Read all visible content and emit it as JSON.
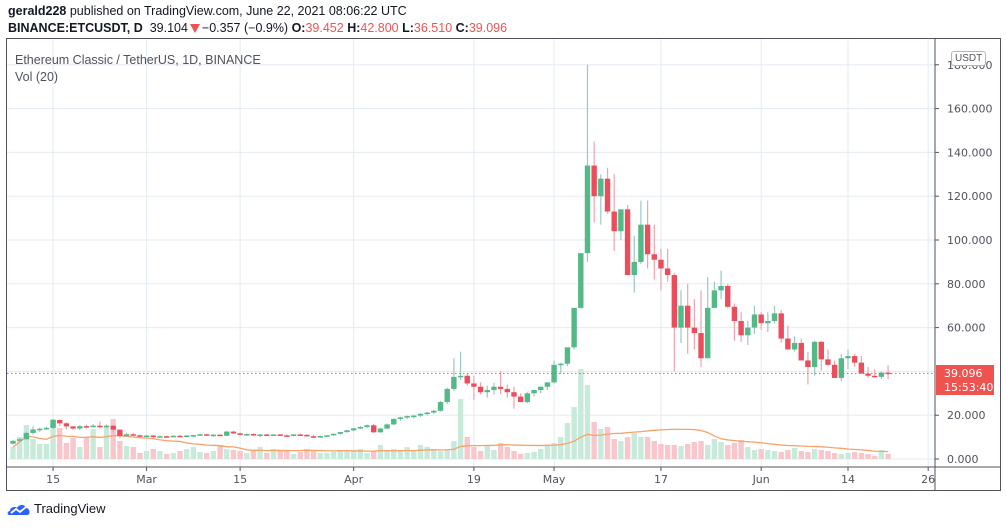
{
  "header": {
    "publisher": "gerald228",
    "published_text": "published on TradingView.com, June 22, 2021 08:06:22 UTC",
    "symbol": "BINANCE:ETCUSDT, D",
    "last": "39.104",
    "change": "−0.357 (−0.9%)",
    "o_label": "O:",
    "o": "39.452",
    "h_label": "H:",
    "h": "42.800",
    "l_label": "L:",
    "l": "36.510",
    "c_label": "C:",
    "c": "39.096"
  },
  "legend": {
    "title": "Ethereum Classic / TetherUS, 1D, BINANCE",
    "volume": "Vol (20)"
  },
  "axis": {
    "currency_badge": "USDT",
    "last_price_label": "39.096",
    "countdown": "15:53:40"
  },
  "footer": {
    "brand": "TradingView"
  },
  "colors": {
    "up": "#53b987",
    "down": "#eb4d5c",
    "up_volume": "#c8eadb",
    "down_volume": "#f9c6cc",
    "ma_line": "#f6a36a",
    "grid": "#e3ebf2",
    "price_line": "#ef5350"
  },
  "chart_data": {
    "type": "candlestick",
    "title": "Ethereum Classic / TetherUS, 1D, BINANCE",
    "xlabel": "",
    "ylabel": "USDT",
    "ylim": [
      0,
      180
    ],
    "grid": true,
    "y_ticks": [
      0,
      20,
      40,
      60,
      80,
      100,
      120,
      140,
      160,
      180
    ],
    "y_tick_labels": [
      "0.000",
      "20.000",
      "",
      "60.000",
      "80.000",
      "100.000",
      "120.000",
      "140.000",
      "160.000",
      "180.000"
    ],
    "x_ticks": [
      {
        "label": "15",
        "day": 6
      },
      {
        "label": "Mar",
        "day": 20
      },
      {
        "label": "15",
        "day": 34
      },
      {
        "label": "Apr",
        "day": 51
      },
      {
        "label": "19",
        "day": 69
      },
      {
        "label": "May",
        "day": 81
      },
      {
        "label": "17",
        "day": 97
      },
      {
        "label": "Jun",
        "day": 112
      },
      {
        "label": "14",
        "day": 125
      },
      {
        "label": "26",
        "day": 137
      }
    ],
    "start_date": "2021-02-09",
    "last_close": 39.096,
    "volume_ma_period": 20,
    "candles": [
      [
        7.0,
        8.5,
        6.7,
        8.3
      ],
      [
        8.3,
        9.6,
        7.9,
        9.0
      ],
      [
        9.0,
        12.5,
        8.8,
        11.9
      ],
      [
        11.9,
        15.0,
        11.2,
        13.5
      ],
      [
        13.5,
        14.3,
        12.4,
        13.8
      ],
      [
        13.8,
        14.8,
        13.2,
        14.2
      ],
      [
        14.2,
        18.3,
        13.8,
        17.8
      ],
      [
        17.8,
        18.0,
        15.0,
        16.3
      ],
      [
        16.3,
        16.7,
        13.5,
        14.9
      ],
      [
        14.9,
        15.0,
        13.2,
        13.9
      ],
      [
        13.9,
        15.5,
        13.2,
        15.0
      ],
      [
        15.0,
        15.6,
        14.0,
        14.9
      ],
      [
        14.9,
        16.0,
        14.3,
        15.2
      ],
      [
        15.2,
        17.2,
        14.0,
        14.8
      ],
      [
        14.8,
        15.8,
        14.0,
        15.2
      ],
      [
        15.2,
        15.4,
        11.7,
        13.4
      ],
      [
        13.4,
        13.6,
        9.6,
        10.5
      ],
      [
        10.5,
        12.0,
        10.3,
        11.3
      ],
      [
        11.3,
        12.0,
        10.4,
        10.8
      ],
      [
        10.8,
        11.2,
        9.8,
        10.5
      ],
      [
        10.5,
        10.9,
        10.0,
        10.7
      ],
      [
        10.7,
        11.0,
        9.6,
        10.0
      ],
      [
        10.0,
        10.8,
        9.8,
        10.4
      ],
      [
        10.4,
        10.6,
        9.9,
        10.1
      ],
      [
        10.1,
        10.8,
        10.0,
        10.6
      ],
      [
        10.6,
        11.0,
        10.1,
        10.4
      ],
      [
        10.4,
        10.9,
        9.9,
        10.7
      ],
      [
        10.7,
        11.0,
        10.2,
        10.9
      ],
      [
        10.9,
        11.6,
        10.6,
        11.3
      ],
      [
        11.3,
        11.5,
        10.6,
        10.8
      ],
      [
        10.8,
        11.4,
        10.2,
        11.1
      ],
      [
        11.1,
        11.3,
        10.4,
        10.6
      ],
      [
        10.6,
        12.8,
        10.4,
        12.5
      ],
      [
        12.5,
        12.9,
        11.4,
        11.7
      ],
      [
        11.7,
        12.1,
        10.8,
        11.2
      ],
      [
        11.2,
        11.6,
        10.5,
        11.4
      ],
      [
        11.4,
        11.7,
        10.6,
        10.9
      ],
      [
        10.9,
        11.4,
        9.9,
        11.2
      ],
      [
        11.2,
        11.5,
        10.6,
        11.0
      ],
      [
        11.0,
        11.4,
        10.6,
        11.2
      ],
      [
        11.2,
        11.5,
        10.5,
        10.8
      ],
      [
        10.8,
        11.2,
        10.2,
        10.7
      ],
      [
        10.7,
        11.4,
        10.3,
        11.2
      ],
      [
        11.2,
        11.6,
        10.7,
        11.0
      ],
      [
        11.0,
        11.4,
        10.5,
        10.4
      ],
      [
        10.4,
        10.9,
        9.6,
        9.9
      ],
      [
        9.9,
        10.7,
        9.6,
        10.5
      ],
      [
        10.5,
        11.0,
        10.2,
        10.8
      ],
      [
        10.8,
        11.7,
        10.6,
        11.5
      ],
      [
        11.5,
        12.4,
        11.2,
        12.3
      ],
      [
        12.3,
        13.4,
        12.0,
        13.1
      ],
      [
        13.1,
        14.3,
        12.8,
        14.0
      ],
      [
        14.0,
        15.0,
        13.6,
        14.6
      ],
      [
        14.6,
        15.8,
        14.2,
        15.4
      ],
      [
        15.4,
        16.1,
        11.8,
        12.2
      ],
      [
        12.2,
        14.3,
        11.9,
        13.9
      ],
      [
        13.9,
        16.2,
        13.6,
        15.8
      ],
      [
        15.8,
        18.6,
        15.4,
        18.3
      ],
      [
        18.3,
        19.3,
        17.4,
        19.0
      ],
      [
        19.0,
        19.8,
        18.2,
        19.6
      ],
      [
        19.6,
        20.3,
        18.5,
        19.8
      ],
      [
        19.8,
        21.0,
        19.2,
        20.6
      ],
      [
        20.6,
        21.4,
        19.9,
        21.2
      ],
      [
        21.2,
        22.5,
        20.6,
        22.0
      ],
      [
        22.0,
        26.5,
        21.7,
        26.0
      ],
      [
        26.0,
        32.5,
        25.0,
        32.0
      ],
      [
        32.0,
        46.0,
        31.0,
        37.5
      ],
      [
        37.5,
        49.0,
        36.0,
        38.0
      ],
      [
        38.0,
        39.0,
        33.5,
        34.5
      ],
      [
        34.5,
        38.0,
        27.0,
        33.0
      ],
      [
        33.0,
        35.0,
        29.5,
        30.5
      ],
      [
        30.5,
        33.5,
        28.0,
        31.5
      ],
      [
        31.5,
        34.8,
        29.5,
        33.0
      ],
      [
        33.0,
        40.0,
        29.5,
        32.0
      ],
      [
        32.0,
        34.0,
        28.0,
        30.5
      ],
      [
        30.5,
        33.0,
        23.0,
        28.5
      ],
      [
        28.5,
        30.0,
        26.0,
        26.0
      ],
      [
        26.0,
        30.5,
        25.5,
        30.0
      ],
      [
        30.0,
        31.5,
        28.5,
        31.5
      ],
      [
        31.5,
        33.0,
        30.0,
        33.0
      ],
      [
        33.0,
        35.0,
        31.5,
        35.0
      ],
      [
        35.0,
        45.0,
        34.5,
        43.0
      ],
      [
        43.0,
        44.0,
        39.0,
        43.5
      ],
      [
        43.5,
        50.0,
        42.5,
        51.0
      ],
      [
        51.0,
        66.0,
        50.0,
        69.0
      ],
      [
        69.0,
        92.0,
        68.5,
        94.0
      ],
      [
        94.0,
        180.0,
        90.0,
        134.0
      ],
      [
        134.0,
        145.0,
        108.0,
        120.0
      ],
      [
        120.0,
        130.0,
        107.0,
        128.0
      ],
      [
        128.0,
        133.0,
        112.0,
        113.0
      ],
      [
        113.0,
        130.0,
        95.0,
        104.0
      ],
      [
        104.0,
        111.0,
        100.0,
        114.0
      ],
      [
        114.0,
        116.0,
        84.0,
        84.0
      ],
      [
        84.0,
        102.0,
        76.0,
        90.0
      ],
      [
        90.0,
        118.0,
        89.0,
        107.0
      ],
      [
        107.0,
        118.0,
        87.0,
        93.5
      ],
      [
        93.5,
        107.0,
        82.0,
        91.0
      ],
      [
        91.0,
        96.0,
        77.0,
        87.0
      ],
      [
        87.0,
        96.0,
        81.0,
        84.0
      ],
      [
        84.0,
        85.0,
        40.0,
        60.0
      ],
      [
        60.0,
        77.0,
        53.0,
        70.0
      ],
      [
        70.0,
        80.0,
        48.0,
        60.0
      ],
      [
        60.0,
        73.0,
        50.0,
        57.5
      ],
      [
        57.5,
        77.0,
        42.0,
        46.0
      ],
      [
        46.0,
        83.0,
        49.0,
        69.0
      ],
      [
        69.0,
        81.0,
        73.0,
        77.0
      ],
      [
        77.0,
        86.0,
        73.0,
        79.0
      ],
      [
        79.0,
        80.0,
        69.0,
        69.5
      ],
      [
        69.5,
        71.0,
        54.0,
        63.0
      ],
      [
        63.0,
        67.0,
        53.5,
        56.5
      ],
      [
        56.5,
        63.0,
        52.0,
        60.0
      ],
      [
        60.0,
        70.0,
        57.0,
        66.0
      ],
      [
        66.0,
        67.0,
        59.0,
        62.0
      ],
      [
        62.0,
        67.0,
        58.0,
        63.0
      ],
      [
        63.0,
        70.0,
        62.0,
        66.5
      ],
      [
        66.5,
        68.0,
        53.0,
        55.0
      ],
      [
        55.0,
        61.0,
        53.5,
        50.0
      ],
      [
        50.0,
        56.0,
        49.0,
        53.0
      ],
      [
        53.0,
        55.0,
        46.0,
        45.0
      ],
      [
        45.0,
        49.0,
        34.0,
        42.0
      ],
      [
        42.0,
        54.0,
        38.0,
        53.5
      ],
      [
        53.5,
        54.0,
        40.5,
        45.5
      ],
      [
        45.5,
        50.0,
        42.5,
        43.0
      ],
      [
        43.0,
        45.0,
        38.0,
        37.0
      ],
      [
        37.0,
        48.0,
        35.5,
        46.0
      ],
      [
        46.0,
        50.0,
        41.0,
        47.0
      ],
      [
        47.0,
        48.0,
        42.0,
        44.0
      ],
      [
        44.0,
        47.0,
        39.5,
        39.0
      ],
      [
        39.0,
        42.0,
        37.0,
        38.0
      ],
      [
        38.0,
        41.0,
        37.0,
        37.5
      ],
      [
        37.5,
        40.0,
        36.5,
        39.45
      ],
      [
        39.45,
        42.8,
        36.51,
        39.096
      ]
    ],
    "volume_note": "volume bars in relative units (0-100); peak near May 6",
    "volumes": [
      12,
      22,
      34,
      20,
      15,
      15,
      40,
      31,
      16,
      21,
      12,
      22,
      30,
      12,
      33,
      40,
      18,
      13,
      12,
      6,
      8,
      10,
      8,
      5,
      6,
      8,
      10,
      12,
      7,
      6,
      8,
      14,
      10,
      9,
      8,
      6,
      8,
      12,
      6,
      10,
      9,
      8,
      5,
      7,
      10,
      8,
      6,
      6,
      7,
      9,
      8,
      9,
      10,
      6,
      8,
      14,
      8,
      10,
      8,
      12,
      9,
      14,
      12,
      10,
      8,
      9,
      18,
      60,
      22,
      12,
      8,
      14,
      9,
      16,
      12,
      8,
      5,
      6,
      7,
      10,
      14,
      16,
      22,
      36,
      52,
      90,
      74,
      37,
      30,
      32,
      20,
      18,
      22,
      26,
      22,
      22,
      18,
      15,
      14,
      14,
      13,
      15,
      17,
      18,
      14,
      20,
      17,
      14,
      16,
      19,
      12,
      9,
      10,
      9,
      8,
      7,
      9,
      11,
      8,
      7,
      10,
      9,
      8,
      6,
      5,
      6,
      7,
      6,
      5,
      3,
      9,
      5
    ]
  }
}
